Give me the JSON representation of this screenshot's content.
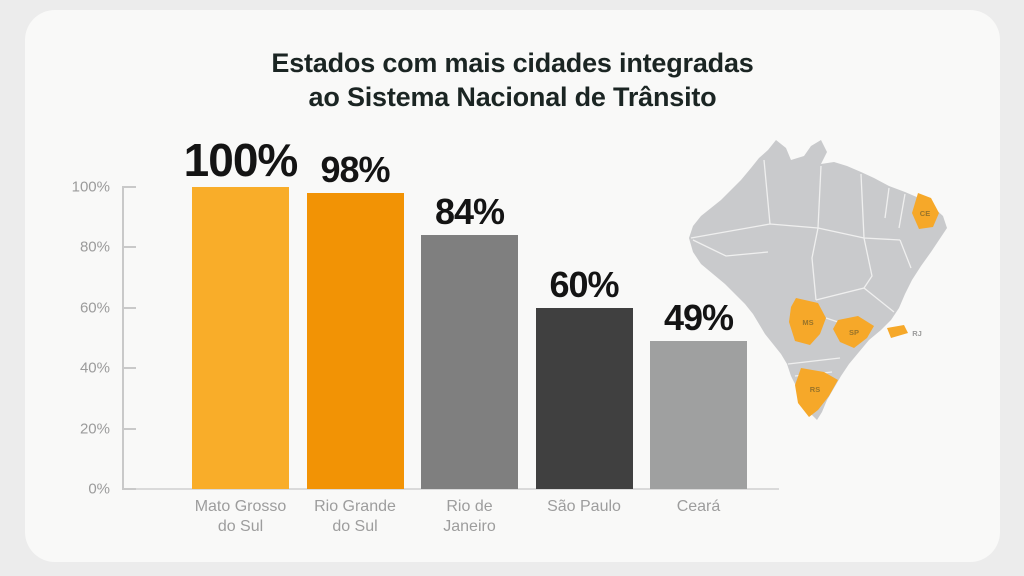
{
  "page": {
    "background": "#ececec",
    "card_background": "#f9f9f8"
  },
  "title": {
    "line1": "Estados com mais cidades integradas",
    "line2": "ao Sistema Nacional de Trânsito",
    "color": "#1b2523"
  },
  "chart_data": {
    "type": "bar",
    "title": "Estados com mais cidades integradas ao Sistema Nacional de Trânsito",
    "categories": [
      "Mato Grosso do Sul",
      "Rio Grande do Sul",
      "Rio de Janeiro",
      "São Paulo",
      "Ceará"
    ],
    "category_label_lines": [
      [
        "Mato Grosso",
        "do Sul"
      ],
      [
        "Rio Grande",
        "do Sul"
      ],
      [
        "Rio de",
        "Janeiro"
      ],
      [
        "São Paulo"
      ],
      [
        "Ceará"
      ]
    ],
    "values": [
      100,
      98,
      84,
      60,
      49
    ],
    "value_labels": [
      "100%",
      "98%",
      "84%",
      "60%",
      "49%"
    ],
    "bar_colors": [
      "#F9AD29",
      "#F29305",
      "#7F7F7F",
      "#404040",
      "#9FA0A0"
    ],
    "y_ticks": [
      "0%",
      "20%",
      "40%",
      "60%",
      "80%",
      "100%"
    ],
    "ylim": [
      0,
      100
    ],
    "xlabel": "",
    "ylabel": "",
    "grid": false,
    "legend": false,
    "axis_color": "#c9c9c9",
    "tick_label_color": "#9b9b9b",
    "value_label_color": "#141414",
    "category_label_color": "#9d9d9d"
  },
  "map": {
    "description": "Brazil map with highlighted states",
    "base_color": "#c9cacc",
    "border_color": "#f2f2f1",
    "highlight_color": "#F6A829",
    "state_label_color": "#99742a",
    "outside_label_color": "#9b9b9b",
    "states": [
      {
        "abbr": "CE",
        "highlighted": true
      },
      {
        "abbr": "MS",
        "highlighted": true
      },
      {
        "abbr": "SP",
        "highlighted": true
      },
      {
        "abbr": "RJ",
        "highlighted": true
      },
      {
        "abbr": "RS",
        "highlighted": true
      }
    ]
  }
}
